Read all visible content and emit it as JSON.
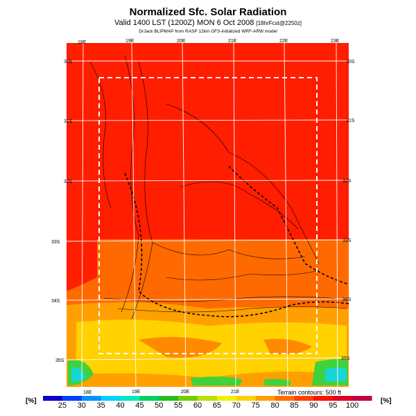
{
  "header": {
    "title": "Normalized Sfc. Solar Radiation",
    "valid": "Valid 1400 LST (1200Z) MON 6 Oct 2008",
    "forecast_note": "[18hrFcst@2250z]",
    "credit": "DrJack BLIPMAP from RASP 12km GFS-initialized WRF-ARW model"
  },
  "map": {
    "lon_top": [
      "18E",
      "19E",
      "20E",
      "21E",
      "22E",
      "23E"
    ],
    "lon_bottom": [
      "18E",
      "19E",
      "20E",
      "21E"
    ],
    "lat_left": [
      "30S",
      "31S",
      "32S",
      "33S",
      "34S",
      "35S"
    ],
    "lat_right": [
      "30S",
      "31S",
      "32S",
      "33S",
      "34S",
      "35S"
    ],
    "terrain_note": "Terrain contours: 500 ft",
    "colors": {
      "red": "#ff1e00",
      "orange": "#ff6a00",
      "amber": "#ffa000",
      "yellow": "#ffd200",
      "green": "#3fd23c",
      "cyan": "#18d6d6"
    }
  },
  "colorbar": {
    "unit": "[%]",
    "labels": [
      "25",
      "30",
      "35",
      "40",
      "45",
      "50",
      "55",
      "60",
      "65",
      "70",
      "75",
      "80",
      "85",
      "90",
      "95",
      "100"
    ],
    "colors": [
      "#0b00c8",
      "#0040ff",
      "#0090ff",
      "#00d0ff",
      "#00e8c0",
      "#00d060",
      "#20c020",
      "#70d000",
      "#b8e000",
      "#f0f000",
      "#ffd000",
      "#ffa000",
      "#ff7000",
      "#ff4000",
      "#ff1000",
      "#e00020",
      "#c00040"
    ]
  }
}
